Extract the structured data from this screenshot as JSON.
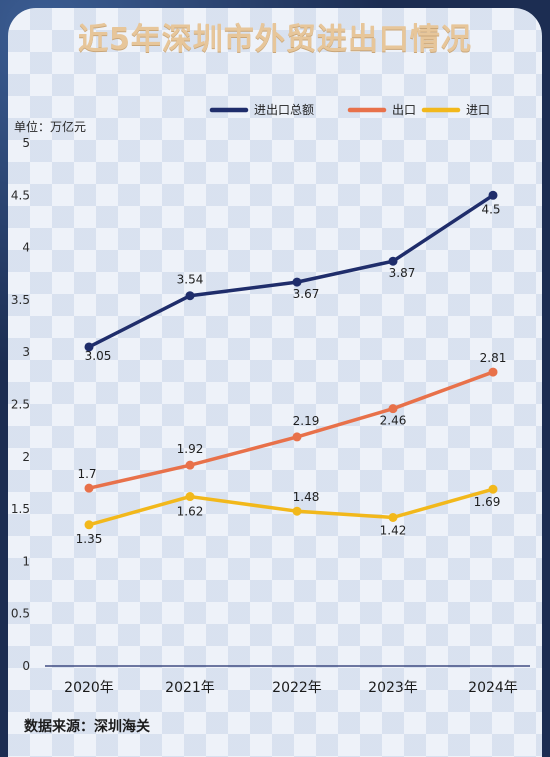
{
  "header": {
    "title": "近5年深圳市外贸进出口情况",
    "unit": "单位：万亿元",
    "source": "数据来源：深圳海关"
  },
  "colors": {
    "total": "#1f2d6b",
    "export": "#e8714a",
    "import": "#f2b81b",
    "title": "#e7c69a"
  },
  "chart_data": {
    "type": "line",
    "title": "近5年深圳市外贸进出口情况",
    "ylabel": "单位：万亿元",
    "categories": [
      "2020年",
      "2021年",
      "2022年",
      "2023年",
      "2024年"
    ],
    "ylim": [
      0,
      5
    ],
    "yticks": [
      "0",
      "0.5",
      "1",
      "1.5",
      "2",
      "2.5",
      "3",
      "3.5",
      "4",
      "4.5",
      "5"
    ],
    "grid": false,
    "legend_position": "top-right",
    "series": [
      {
        "name": "进出口总额",
        "values": [
          3.05,
          3.54,
          3.67,
          3.87,
          4.5
        ],
        "labels": [
          "3.05",
          "3.54",
          "3.67",
          "3.87",
          "4.5"
        ],
        "color": "#1f2d6b"
      },
      {
        "name": "出口",
        "values": [
          1.7,
          1.92,
          2.19,
          2.46,
          2.81
        ],
        "labels": [
          "1.7",
          "1.92",
          "2.19",
          "2.46",
          "2.81"
        ],
        "color": "#e8714a"
      },
      {
        "name": "进口",
        "values": [
          1.35,
          1.62,
          1.48,
          1.42,
          1.69
        ],
        "labels": [
          "1.35",
          "1.62",
          "1.48",
          "1.42",
          "1.69"
        ],
        "color": "#f2b81b"
      }
    ]
  }
}
